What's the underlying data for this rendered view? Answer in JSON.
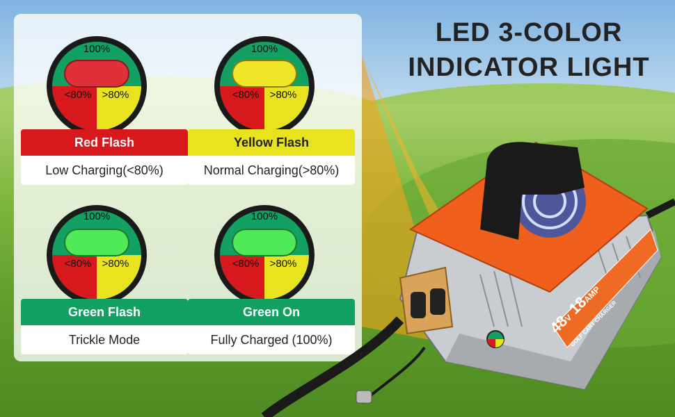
{
  "headline": {
    "line1": "LED 3-COLOR",
    "line2": "INDICATOR LIGHT"
  },
  "colors": {
    "green": "#13a063",
    "red": "#d7191d",
    "yellow": "#e9e21e",
    "led_red": "#e0303a",
    "led_yellow": "#f1e62a",
    "led_green": "#4fea57",
    "charger_orange": "#f0601c"
  },
  "indicators": [
    {
      "top_label": "100%",
      "left_label": "<80%",
      "right_label": ">80%",
      "lit_color": "red",
      "title": "Red Flash",
      "description": "Low Charging(<80%)"
    },
    {
      "top_label": "100%",
      "left_label": "<80%",
      "right_label": ">80%",
      "lit_color": "yellow",
      "title": "Yellow Flash",
      "description": "Normal Charging(>80%)"
    },
    {
      "top_label": "100%",
      "left_label": "<80%",
      "right_label": ">80%",
      "lit_color": "green",
      "title": "Green Flash",
      "description": "Trickle Mode"
    },
    {
      "top_label": "100%",
      "left_label": "<80%",
      "right_label": ">80%",
      "lit_color": "green",
      "title": "Green On",
      "description": "Fully Charged (100%)"
    }
  ],
  "device": {
    "rating_voltage": "48",
    "rating_voltage_unit": "V",
    "rating_current": "18",
    "rating_current_unit": "AMP",
    "product_line": "GOLF CART CHARGER"
  }
}
